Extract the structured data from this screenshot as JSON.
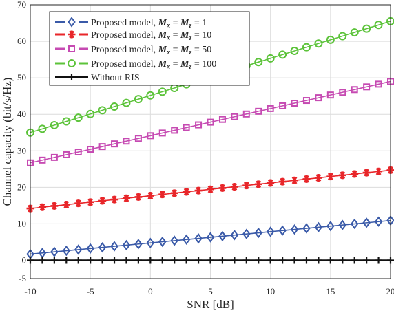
{
  "chart_data": {
    "type": "line",
    "title": "",
    "xlabel": "SNR [dB]",
    "ylabel": "Channel capacity (bit/s/Hz)",
    "xlim": [
      -10,
      20
    ],
    "ylim": [
      -5,
      70
    ],
    "xticks": [
      "-10",
      "-5",
      "0",
      "5",
      "10",
      "15",
      "20"
    ],
    "yticks": [
      "-5",
      "0",
      "10",
      "20",
      "30",
      "40",
      "50",
      "60",
      "70"
    ],
    "grid": true,
    "legend_position": "top-left",
    "x": [
      -10,
      20
    ],
    "marker_step_db": 1,
    "series": [
      {
        "prefix": "Proposed model, ",
        "math_a": "M",
        "sub_a": "x",
        "math_b": "M",
        "sub_b": "z",
        "value": "1",
        "values": [
          1.7,
          10.9
        ],
        "color": "#3a5aa8",
        "marker": "diamond"
      },
      {
        "prefix": "Proposed model, ",
        "math_a": "M",
        "sub_a": "x",
        "math_b": "M",
        "sub_b": "z",
        "value": "10",
        "values": [
          14.2,
          24.7
        ],
        "color": "#e8262a",
        "marker": "asterisk"
      },
      {
        "prefix": "Proposed model, ",
        "math_a": "M",
        "sub_a": "x",
        "math_b": "M",
        "sub_b": "z",
        "value": "50",
        "values": [
          26.7,
          49.0
        ],
        "color": "#c64ab2",
        "marker": "square"
      },
      {
        "prefix": "Proposed model, ",
        "math_a": "M",
        "sub_a": "x",
        "math_b": "M",
        "sub_b": "z",
        "value": "100",
        "values": [
          35.0,
          65.5
        ],
        "color": "#5cc33a",
        "marker": "circle"
      },
      {
        "name": "Without RIS",
        "values": [
          0,
          0
        ],
        "color": "#111111",
        "marker": "plus"
      }
    ]
  }
}
